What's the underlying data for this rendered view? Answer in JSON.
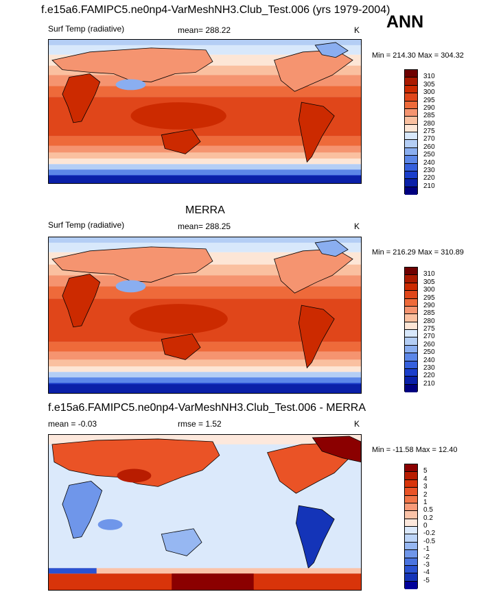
{
  "top_title": "f.e15a6.FAMIPC5.ne0np4-VarMeshNH3.Club_Test.006 (yrs 1979-2004)",
  "season": "ANN",
  "chart_data": [
    {
      "type": "heatmap",
      "name": "model",
      "variable_label": "Surf Temp (radiative)",
      "stat_label": "mean= 288.22",
      "units": "K",
      "min_max": "Min = 214.30 Max = 304.32",
      "colorbar_ticks": [
        "310",
        "305",
        "300",
        "295",
        "290",
        "285",
        "280",
        "275",
        "270",
        "260",
        "250",
        "240",
        "230",
        "220",
        "210"
      ],
      "colors": [
        "#6e0000",
        "#aa1a00",
        "#cc2a00",
        "#e0461a",
        "#ee6a3a",
        "#f59470",
        "#fac0a0",
        "#fde6d6",
        "#d8e8fb",
        "#b4cef5",
        "#8aaef0",
        "#5c87e8",
        "#3560dd",
        "#1a3ecb",
        "#0a20a8",
        "#000080"
      ]
    },
    {
      "type": "heatmap",
      "name": "obs",
      "panel_title": "MERRA",
      "variable_label": "Surf Temp (radiative)",
      "stat_label": "mean= 288.25",
      "units": "K",
      "min_max": "Min = 216.29 Max = 310.89",
      "colorbar_ticks": [
        "310",
        "305",
        "300",
        "295",
        "290",
        "285",
        "280",
        "275",
        "270",
        "260",
        "250",
        "240",
        "230",
        "220",
        "210"
      ],
      "colors": [
        "#6e0000",
        "#aa1a00",
        "#cc2a00",
        "#e0461a",
        "#ee6a3a",
        "#f59470",
        "#fac0a0",
        "#fde6d6",
        "#d8e8fb",
        "#b4cef5",
        "#8aaef0",
        "#5c87e8",
        "#3560dd",
        "#1a3ecb",
        "#0a20a8",
        "#000080"
      ]
    },
    {
      "type": "heatmap",
      "name": "diff",
      "panel_title": "f.e15a6.FAMIPC5.ne0np4-VarMeshNH3.Club_Test.006 - MERRA",
      "mean_label": "mean =  -0.03",
      "rmse_label": "rmse =   1.52",
      "units": "K",
      "min_max": "Min = -11.58 Max =  12.40",
      "colorbar_ticks": [
        "5",
        "4",
        "3",
        "2",
        "1",
        "0.5",
        "0.2",
        "0",
        "-0.2",
        "-0.5",
        "-1",
        "-2",
        "-3",
        "-4",
        "-5"
      ],
      "colors": [
        "#8b0000",
        "#b81c00",
        "#d8340a",
        "#ea5326",
        "#f27548",
        "#f79a78",
        "#fbc3a8",
        "#fde8dc",
        "#dbe9fb",
        "#bcd4f7",
        "#96b7f2",
        "#6f96ea",
        "#4a74e0",
        "#2a52d2",
        "#1434b8",
        "#00009a"
      ]
    }
  ]
}
